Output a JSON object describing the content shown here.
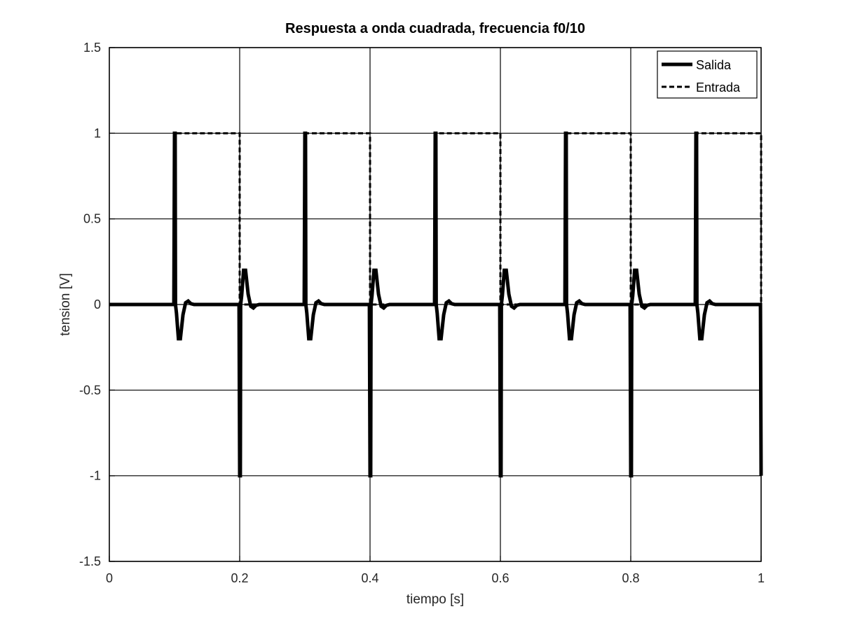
{
  "chart_data": {
    "type": "line",
    "title": "Respuesta a onda cuadrada, frecuencia f0/10",
    "xlabel": "tiempo [s]",
    "ylabel": "tension [V]",
    "xlim": [
      0,
      1
    ],
    "ylim": [
      -1.5,
      1.5
    ],
    "xticks": [
      0,
      0.2,
      0.4,
      0.6,
      0.8,
      1
    ],
    "xtick_labels": [
      "0",
      "0.2",
      "0.4",
      "0.6",
      "0.8",
      "1"
    ],
    "yticks": [
      -1.5,
      -1,
      -0.5,
      0,
      0.5,
      1,
      1.5
    ],
    "ytick_labels": [
      "-1.5",
      "-1",
      "-0.5",
      "0",
      "0.5",
      "1",
      "1.5"
    ],
    "grid": true,
    "legend_position": "top-right",
    "series": [
      {
        "name": "Salida",
        "style": "solid-thick",
        "color": "#000000",
        "x": [
          0,
          0.099,
          0.1,
          0.101,
          0.1015,
          0.103,
          0.106,
          0.109,
          0.113,
          0.117,
          0.121,
          0.125,
          0.13,
          0.199,
          0.2,
          0.201,
          0.2015,
          0.203,
          0.206,
          0.209,
          0.213,
          0.217,
          0.221,
          0.225,
          0.23,
          0.299,
          0.3,
          0.301,
          0.3015,
          0.303,
          0.306,
          0.309,
          0.313,
          0.317,
          0.321,
          0.325,
          0.33,
          0.399,
          0.4,
          0.401,
          0.4015,
          0.403,
          0.406,
          0.409,
          0.413,
          0.417,
          0.421,
          0.425,
          0.43,
          0.499,
          0.5,
          0.501,
          0.5015,
          0.503,
          0.506,
          0.509,
          0.513,
          0.517,
          0.521,
          0.525,
          0.53,
          0.599,
          0.6,
          0.601,
          0.6015,
          0.603,
          0.606,
          0.609,
          0.613,
          0.617,
          0.621,
          0.625,
          0.63,
          0.699,
          0.7,
          0.701,
          0.7015,
          0.703,
          0.706,
          0.709,
          0.713,
          0.717,
          0.721,
          0.725,
          0.73,
          0.799,
          0.8,
          0.801,
          0.8015,
          0.803,
          0.806,
          0.809,
          0.813,
          0.817,
          0.821,
          0.825,
          0.83,
          0.899,
          0.9,
          0.901,
          0.9015,
          0.903,
          0.906,
          0.909,
          0.913,
          0.917,
          0.921,
          0.925,
          0.93,
          0.999,
          1.0
        ],
        "y": [
          0,
          0,
          1,
          1,
          0,
          -0.05,
          -0.2,
          -0.2,
          -0.06,
          0.01,
          0.02,
          0.005,
          0,
          0,
          -1,
          -1,
          0,
          0.05,
          0.2,
          0.2,
          0.06,
          -0.01,
          -0.02,
          -0.005,
          0,
          0,
          1,
          1,
          0,
          -0.05,
          -0.2,
          -0.2,
          -0.06,
          0.01,
          0.02,
          0.005,
          0,
          0,
          -1,
          -1,
          0,
          0.05,
          0.2,
          0.2,
          0.06,
          -0.01,
          -0.02,
          -0.005,
          0,
          0,
          1,
          1,
          0,
          -0.05,
          -0.2,
          -0.2,
          -0.06,
          0.01,
          0.02,
          0.005,
          0,
          0,
          -1,
          -1,
          0,
          0.05,
          0.2,
          0.2,
          0.06,
          -0.01,
          -0.02,
          -0.005,
          0,
          0,
          1,
          1,
          0,
          -0.05,
          -0.2,
          -0.2,
          -0.06,
          0.01,
          0.02,
          0.005,
          0,
          0,
          -1,
          -1,
          0,
          0.05,
          0.2,
          0.2,
          0.06,
          -0.01,
          -0.02,
          -0.005,
          0,
          0,
          1,
          1,
          0,
          -0.05,
          -0.2,
          -0.2,
          -0.06,
          0.01,
          0.02,
          0.005,
          0,
          0,
          -1
        ]
      },
      {
        "name": "Entrada",
        "style": "dashed",
        "color": "#000000",
        "x": [
          0,
          0.1,
          0.1,
          0.2,
          0.2,
          0.3,
          0.3,
          0.4,
          0.4,
          0.5,
          0.5,
          0.6,
          0.6,
          0.7,
          0.7,
          0.8,
          0.8,
          0.9,
          0.9,
          1.0,
          1.0
        ],
        "y": [
          0,
          0,
          1,
          1,
          0,
          0,
          1,
          1,
          0,
          0,
          1,
          1,
          0,
          0,
          1,
          1,
          0,
          0,
          1,
          1,
          0
        ]
      }
    ]
  }
}
